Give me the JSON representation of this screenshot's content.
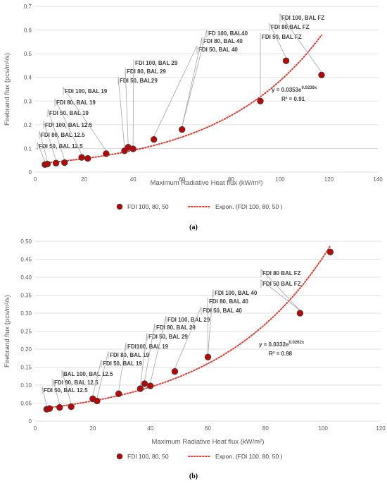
{
  "colors": {
    "marker_fill": "#c00000",
    "marker_stroke": "#404040",
    "trend": "#e03c31",
    "grid": "#d9d9d9"
  },
  "chart_data": [
    {
      "type": "scatter",
      "panel": "(a)",
      "xlabel": "Maximum Radiative Heat flux (kW/m²)",
      "ylabel": "Firebrand flux (pcs/m²/s)",
      "xlim": [
        0,
        140
      ],
      "ylim": [
        0,
        0.7
      ],
      "xticks": [
        0,
        20,
        40,
        60,
        80,
        100,
        120,
        140
      ],
      "yticks": [
        0,
        0.1,
        0.2,
        0.3,
        0.4,
        0.5,
        0.6,
        0.7
      ],
      "grid": "horizontal",
      "legend_position": "bottom",
      "legend": [
        "FDI 100, 80, 50",
        "Expon. (FDI 100, 80, 50 )"
      ],
      "points": [
        {
          "x": 4.0,
          "y": 0.032
        },
        {
          "x": 5.0,
          "y": 0.034
        },
        {
          "x": 8.5,
          "y": 0.038
        },
        {
          "x": 12.0,
          "y": 0.04
        },
        {
          "x": 19.0,
          "y": 0.062
        },
        {
          "x": 21.5,
          "y": 0.058
        },
        {
          "x": 29.0,
          "y": 0.078
        },
        {
          "x": 36.5,
          "y": 0.09
        },
        {
          "x": 38.0,
          "y": 0.105
        },
        {
          "x": 40.0,
          "y": 0.098
        },
        {
          "x": 48.5,
          "y": 0.138
        },
        {
          "x": 60.0,
          "y": 0.18
        },
        {
          "x": 92.0,
          "y": 0.3
        },
        {
          "x": 102.5,
          "y": 0.47
        },
        {
          "x": 117.0,
          "y": 0.41
        }
      ],
      "trendline": {
        "a": 0.0353,
        "b": 0.0239,
        "x_from": 4,
        "x_to": 117
      },
      "equation_prefix": "y = 0.0353e",
      "equation_exp": "0.0239x",
      "r2_label": "R² = 0.91",
      "annotations": [
        {
          "text": "FDI 50, BAL 12.5",
          "x": 4.0,
          "y": 0.032
        },
        {
          "text": "FDI 80, BAL 12.5",
          "x": 5.0,
          "y": 0.034
        },
        {
          "text": "FDI 100, BAL 12.5",
          "x": 8.5,
          "y": 0.038
        },
        {
          "text": "FDI 50, BAL 19",
          "x": 12.0,
          "y": 0.04
        },
        {
          "text": "FDI 80, BAL 19",
          "x": 19.0,
          "y": 0.062
        },
        {
          "text": "FDI 100, BAL 19",
          "x": 29.0,
          "y": 0.078
        },
        {
          "text": "FDI 50, BAL29",
          "x": 36.5,
          "y": 0.09
        },
        {
          "text": "FDI 80, BAL 29",
          "x": 38.0,
          "y": 0.105
        },
        {
          "text": "FDI 100, BAL 29",
          "x": 40.0,
          "y": 0.098
        },
        {
          "text": "FDI 50, BAL 40",
          "x": 48.5,
          "y": 0.138
        },
        {
          "text": "FDI 80, BAL 40",
          "x": 60.0,
          "y": 0.18
        },
        {
          "text": "FD 100, BAL40",
          "x": 60.0,
          "y": 0.18
        },
        {
          "text": "FDI 50, BAL FZ",
          "x": 92.0,
          "y": 0.3
        },
        {
          "text": "FDI 80,BAL FZ",
          "x": 102.5,
          "y": 0.47
        },
        {
          "text": "FDI 100, BAL FZ",
          "x": 117.0,
          "y": 0.41
        }
      ]
    },
    {
      "type": "scatter",
      "panel": "(b)",
      "xlabel": "Maximum Radiative Heat flux (kW/m²)",
      "ylabel": "Firebrand flux (pcs/m²/s)",
      "xlim": [
        0,
        120
      ],
      "ylim": [
        0,
        0.5
      ],
      "xticks": [
        0,
        20,
        40,
        60,
        80,
        100,
        120
      ],
      "yticks": [
        0,
        0.05,
        0.1,
        0.15,
        0.2,
        0.25,
        0.3,
        0.35,
        0.4,
        0.45,
        0.5
      ],
      "grid": "horizontal",
      "legend_position": "bottom",
      "legend": [
        "FDI 100, 80, 50",
        "Expon. (FDI 100, 80, 50 )"
      ],
      "points": [
        {
          "x": 4.0,
          "y": 0.033
        },
        {
          "x": 5.0,
          "y": 0.035
        },
        {
          "x": 8.5,
          "y": 0.038
        },
        {
          "x": 12.5,
          "y": 0.04
        },
        {
          "x": 20.0,
          "y": 0.062
        },
        {
          "x": 21.5,
          "y": 0.056
        },
        {
          "x": 29.0,
          "y": 0.076
        },
        {
          "x": 36.5,
          "y": 0.09
        },
        {
          "x": 38.0,
          "y": 0.104
        },
        {
          "x": 40.0,
          "y": 0.098
        },
        {
          "x": 48.5,
          "y": 0.138
        },
        {
          "x": 60.0,
          "y": 0.178
        },
        {
          "x": 92.0,
          "y": 0.3
        },
        {
          "x": 102.5,
          "y": 0.47
        }
      ],
      "trendline": {
        "a": 0.0332,
        "b": 0.0262,
        "x_from": 4,
        "x_to": 102.5
      },
      "equation_prefix": "y = 0.0332e",
      "equation_exp": "0.0262x",
      "r2_label": "R² = 0.98",
      "annotations": [
        {
          "text": "FDI 50, BAL 12.5",
          "x": 4.0,
          "y": 0.033
        },
        {
          "text": "FDI 80, BAL 12.5",
          "x": 8.5,
          "y": 0.038
        },
        {
          "text": "BAL 100, BAL 12.5",
          "x": 12.5,
          "y": 0.04
        },
        {
          "text": "FDI 50, BAL 19",
          "x": 20.0,
          "y": 0.062
        },
        {
          "text": "FDI 80, BAL 19",
          "x": 21.5,
          "y": 0.056
        },
        {
          "text": "FDI100, BAL 19",
          "x": 29.0,
          "y": 0.076
        },
        {
          "text": "FDI 50, BAL 29",
          "x": 36.5,
          "y": 0.09
        },
        {
          "text": "FDI 80, BAL 29",
          "x": 38.0,
          "y": 0.104
        },
        {
          "text": "FDI 100, BAL 29",
          "x": 40.0,
          "y": 0.098
        },
        {
          "text": "FDI 50, BAL 40",
          "x": 48.5,
          "y": 0.138
        },
        {
          "text": "FDI 80, BAL 40",
          "x": 60.0,
          "y": 0.178
        },
        {
          "text": "FDI 100, BAL 40",
          "x": 60.0,
          "y": 0.178
        },
        {
          "text": "FDI 50 BAL FZ",
          "x": 92.0,
          "y": 0.3
        },
        {
          "text": "FDI 80 BAL FZ",
          "x": 92.0,
          "y": 0.3
        }
      ]
    }
  ]
}
